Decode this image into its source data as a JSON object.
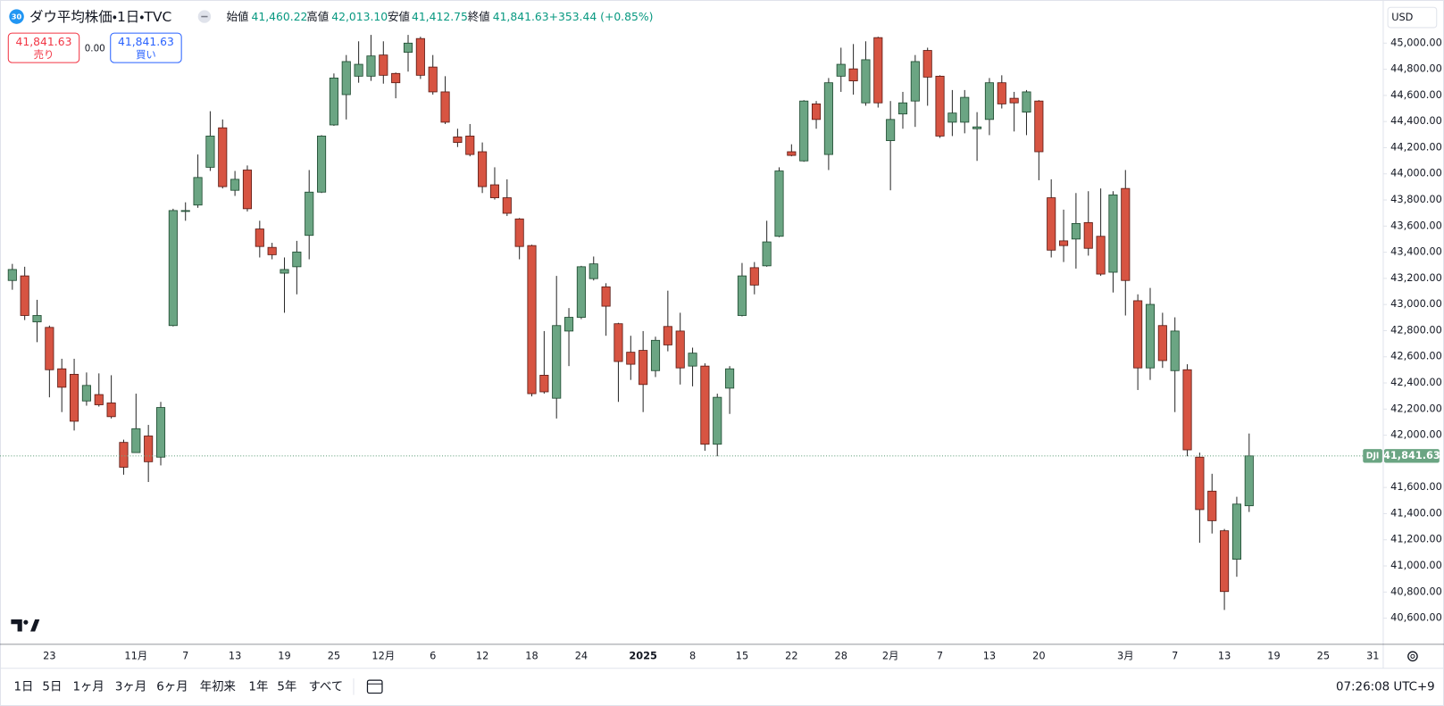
{
  "header": {
    "badge": "30",
    "title": "ダウ平均株価・1日・TVC",
    "ohlc": [
      {
        "label": "始値",
        "value": "41,460.22"
      },
      {
        "label": "高値",
        "value": "42,013.10"
      },
      {
        "label": "安値",
        "value": "41,412.75"
      },
      {
        "label": "終値",
        "value": "41,841.63"
      }
    ],
    "change": "+353.44 (+0.85%)"
  },
  "trade": {
    "sell_price": "41,841.63",
    "sell_label": "売り",
    "spread": "0.00",
    "buy_price": "41,841.63",
    "buy_label": "買い"
  },
  "currency": "USD",
  "chart_data": {
    "type": "candlestick",
    "categories": [
      null,
      null,
      null,
      "23",
      null,
      null,
      null,
      null,
      null,
      null,
      "11月",
      null,
      null,
      null,
      "7",
      null,
      null,
      null,
      "13",
      null,
      null,
      null,
      "19",
      null,
      null,
      null,
      "25",
      null,
      null,
      null,
      "12月",
      null,
      null,
      null,
      "6",
      null,
      null,
      null,
      "12",
      null,
      null,
      null,
      "18",
      null,
      null,
      null,
      "24",
      null,
      null,
      null,
      null,
      "2025",
      null,
      null,
      null,
      "8",
      null,
      null,
      null,
      "15",
      null,
      null,
      null,
      "22",
      null,
      null,
      null,
      "28",
      null,
      null,
      null,
      "2月",
      null,
      null,
      null,
      "7",
      null,
      null,
      null,
      "13",
      null,
      null,
      null,
      "20",
      null,
      null,
      null,
      null,
      null,
      null,
      "3月",
      null,
      null,
      null,
      "7",
      null,
      null,
      null,
      "13",
      null,
      null,
      null,
      "19",
      null,
      null,
      null,
      "25",
      null,
      null,
      null,
      "31"
    ],
    "open": [
      43184,
      43219,
      42867,
      42825,
      42508,
      42466,
      42262,
      42311,
      42247,
      41945,
      41867,
      41994,
      41832,
      42839,
      43712,
      43761,
      44050,
      44352,
      43874,
      44029,
      43578,
      43437,
      43240,
      43289,
      43529,
      43860,
      44374,
      44606,
      44747,
      44747,
      44909,
      44768,
      44930,
      45035,
      44817,
      44627,
      44282,
      44289,
      44169,
      43916,
      43817,
      43655,
      43451,
      42459,
      42283,
      42797,
      42902,
      43198,
      43135,
      42853,
      42635,
      42649,
      42494,
      42832,
      42797,
      42529,
      42529,
      41931,
      42360,
      42916,
      43282,
      43296,
      43522,
      44169,
      44099,
      44535,
      44148,
      44747,
      44803,
      44543,
      45042,
      44254,
      44458,
      44557,
      44944,
      44747,
      44395,
      44395,
      44345,
      44416,
      44697,
      44578,
      44472,
      44557,
      43817,
      43487,
      43501,
      43627,
      43522,
      43247,
      43888,
      43029,
      42515,
      42839,
      42494,
      42501,
      41832,
      41572,
      41269,
      41051,
      41460.22,
      null,
      null,
      null,
      null,
      null,
      null,
      null,
      null,
      null,
      null
    ],
    "high": [
      43311,
      43289,
      43036,
      42839,
      42585,
      42585,
      42480,
      42473,
      42459,
      41966,
      42318,
      42079,
      42255,
      43733,
      43782,
      44148,
      44479,
      44416,
      44022,
      44064,
      43641,
      43472,
      43360,
      43487,
      44029,
      44296,
      44768,
      44909,
      45014,
      45063,
      45014,
      44775,
      45063,
      45049,
      44909,
      44747,
      44345,
      44381,
      44240,
      44050,
      43958,
      43662,
      43458,
      42797,
      43219,
      42973,
      43296,
      43367,
      43163,
      42860,
      42761,
      42797,
      42754,
      43106,
      42937,
      42670,
      42550,
      42318,
      42529,
      43318,
      43325,
      43641,
      44050,
      44226,
      44564,
      44557,
      44733,
      44965,
      44993,
      45014,
      45049,
      44557,
      44627,
      44909,
      44965,
      44754,
      44641,
      44641,
      44472,
      44733,
      44754,
      44627,
      44641,
      44564,
      43958,
      43726,
      43853,
      43867,
      43888,
      43867,
      44029,
      43078,
      43127,
      42937,
      42902,
      42543,
      41867,
      41705,
      41283,
      41529,
      42013.1,
      null,
      null,
      null,
      null,
      null,
      null,
      null,
      null,
      null,
      null
    ],
    "low": [
      43113,
      42881,
      42712,
      42290,
      42177,
      42036,
      42226,
      42219,
      42128,
      41698,
      41867,
      41642,
      41769,
      42832,
      43641,
      43740,
      44022,
      43888,
      43831,
      43712,
      43360,
      43346,
      42937,
      43078,
      43346,
      43853,
      44367,
      44416,
      44697,
      44711,
      44690,
      44578,
      44782,
      44726,
      44606,
      44381,
      44205,
      44134,
      43853,
      43803,
      43677,
      43346,
      42297,
      42318,
      42128,
      42529,
      42888,
      43184,
      42761,
      42255,
      42423,
      42177,
      42445,
      42642,
      42388,
      42374,
      41881,
      41839,
      42163,
      42909,
      43078,
      43289,
      43515,
      44134,
      44092,
      44345,
      44029,
      44627,
      44606,
      44521,
      44507,
      43874,
      44345,
      44359,
      44521,
      44275,
      44289,
      44310,
      44099,
      44296,
      44500,
      44324,
      44296,
      43951,
      43360,
      43325,
      43275,
      43374,
      43219,
      43092,
      42916,
      42346,
      42423,
      42515,
      42177,
      41839,
      41177,
      41248,
      40663,
      40917,
      41412.75,
      null,
      null,
      null,
      null,
      null,
      null,
      null,
      null,
      null,
      null
    ],
    "close": [
      43268,
      42916,
      42916,
      42501,
      42367,
      42107,
      42381,
      42233,
      42142,
      41755,
      42050,
      41797,
      42212,
      43719,
      43719,
      43972,
      44289,
      43902,
      43958,
      43733,
      43444,
      43381,
      43268,
      43402,
      43860,
      44289,
      44733,
      44859,
      44838,
      44902,
      44754,
      44697,
      45000,
      44754,
      44627,
      44395,
      44240,
      44148,
      43902,
      43817,
      43698,
      43444,
      42318,
      42332,
      42839,
      42902,
      43289,
      43311,
      42987,
      42564,
      42543,
      42388,
      42726,
      42691,
      42515,
      42628,
      41931,
      42290,
      42508,
      43219,
      43149,
      43479,
      44022,
      44141,
      44557,
      44416,
      44697,
      44838,
      44711,
      44873,
      44543,
      44416,
      44543,
      44859,
      44740,
      44289,
      44465,
      44585,
      44359,
      44697,
      44535,
      44543,
      44627,
      44169,
      43416,
      43451,
      43620,
      43430,
      43233,
      43839,
      43184,
      42515,
      43001,
      42571,
      42797,
      41888,
      41431,
      41346,
      40804,
      41473,
      41841.63,
      null,
      null,
      null,
      null,
      null,
      null,
      null,
      null,
      null,
      null
    ],
    "up_color": "#6ba583",
    "down_color": "#d75442",
    "ylim": [
      40400,
      45330
    ],
    "yticks": [
      {
        "value": 40600,
        "label": "40,600.00"
      },
      {
        "value": 40800,
        "label": "40,800.00"
      },
      {
        "value": 41000,
        "label": "41,000.00"
      },
      {
        "value": 41200,
        "label": "41,200.00"
      },
      {
        "value": 41400,
        "label": "41,400.00"
      },
      {
        "value": 41600,
        "label": "41,600.00"
      },
      {
        "value": 42000,
        "label": "42,000.00"
      },
      {
        "value": 42200,
        "label": "42,200.00"
      },
      {
        "value": 42400,
        "label": "42,400.00"
      },
      {
        "value": 42600,
        "label": "42,600.00"
      },
      {
        "value": 42800,
        "label": "42,800.00"
      },
      {
        "value": 43000,
        "label": "43,000.00"
      },
      {
        "value": 43200,
        "label": "43,200.00"
      },
      {
        "value": 43400,
        "label": "43,400.00"
      },
      {
        "value": 43600,
        "label": "43,600.00"
      },
      {
        "value": 43800,
        "label": "43,800.00"
      },
      {
        "value": 44000,
        "label": "44,000.00"
      },
      {
        "value": 44200,
        "label": "44,200.00"
      },
      {
        "value": 44400,
        "label": "44,400.00"
      },
      {
        "value": 44600,
        "label": "44,600.00"
      },
      {
        "value": 44800,
        "label": "44,800.00"
      },
      {
        "value": 45000,
        "label": "45,000.00"
      }
    ],
    "last_price": {
      "symbol": "DJI",
      "value": 41841.63,
      "label": "41,841.63"
    }
  },
  "toolbar": {
    "ranges": [
      "1日",
      "5日",
      "1ヶ月",
      "3ヶ月",
      "6ヶ月",
      "年初来",
      "1年",
      "5年",
      "すべて"
    ],
    "clock": "07:26:08 UTC+9"
  }
}
